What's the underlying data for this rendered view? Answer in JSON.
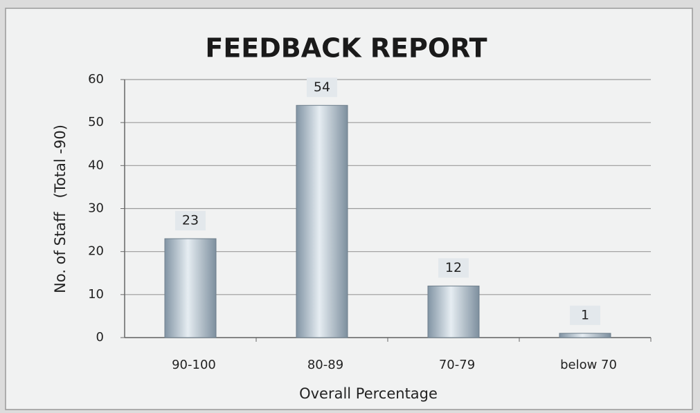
{
  "chart_data": {
    "type": "bar",
    "title": "FEEDBACK REPORT",
    "x_label": "Overall Percentage",
    "y_label": "No. of Staff   (Total -90)",
    "categories": [
      "90-100",
      "80-89",
      "70-79",
      "below 70"
    ],
    "values": [
      23,
      54,
      12,
      1
    ],
    "color": "#9fb3c3",
    "ylim": [
      0,
      60
    ],
    "yticks": [
      0,
      10,
      20,
      30,
      40,
      50,
      60
    ],
    "grid": true
  }
}
